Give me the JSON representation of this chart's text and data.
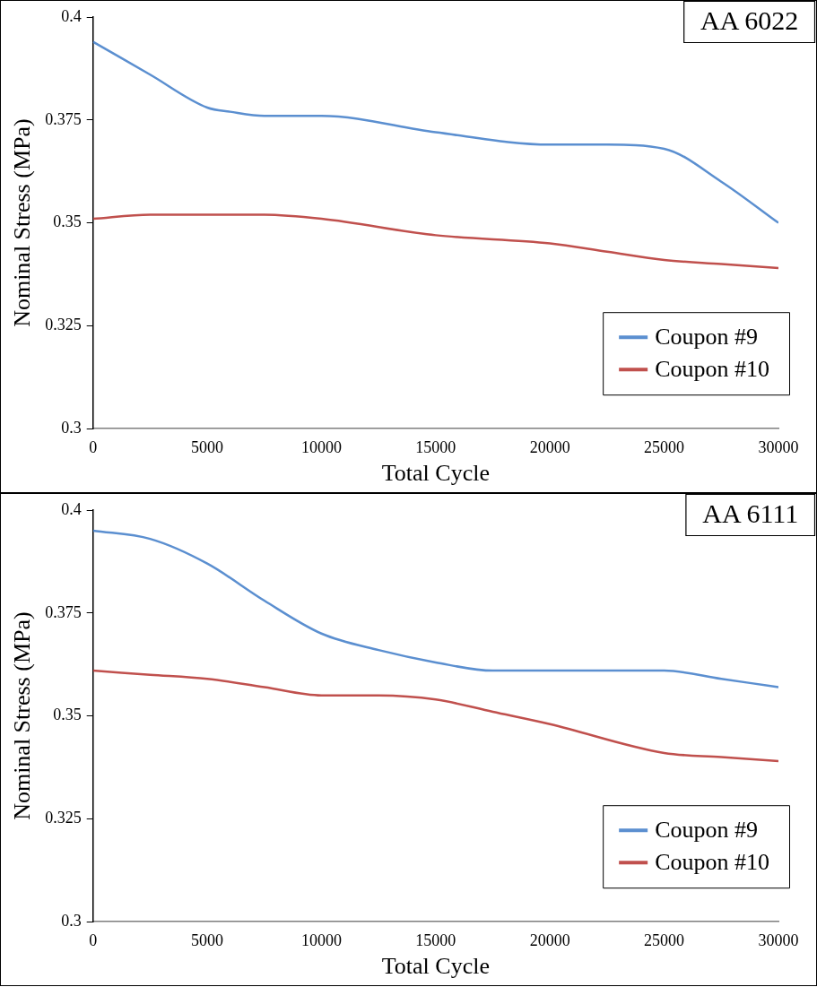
{
  "chart_data": [
    {
      "type": "line",
      "title": "AA 6022",
      "xlabel": "Total Cycle",
      "ylabel": "Nominal Stress (MPa)",
      "x": [
        0,
        2500,
        5000,
        6000,
        7500,
        10000,
        15000,
        20000,
        22500,
        25000,
        27500,
        30000
      ],
      "series": [
        {
          "name": "Coupon #9",
          "color": "#5b8fd0",
          "values": [
            0.394,
            0.386,
            0.378,
            0.377,
            0.376,
            0.376,
            0.372,
            0.369,
            0.369,
            0.368,
            0.36,
            0.35
          ]
        },
        {
          "name": "Coupon #10",
          "color": "#c0504d",
          "values": [
            0.351,
            0.352,
            0.352,
            0.352,
            0.352,
            0.351,
            0.347,
            0.345,
            0.343,
            0.341,
            0.34,
            0.339
          ]
        }
      ],
      "xlim": [
        0,
        30000
      ],
      "xticks": [
        0,
        5000,
        10000,
        15000,
        20000,
        25000,
        30000
      ],
      "ylim": [
        0.3,
        0.4
      ],
      "yticks": [
        0.3,
        0.325,
        0.35,
        0.375,
        0.4
      ],
      "legend": "bottom right"
    },
    {
      "type": "line",
      "title": "AA 6111",
      "xlabel": "Total Cycle",
      "ylabel": "Nominal Stress (MPa)",
      "x": [
        0,
        2500,
        5000,
        7500,
        10000,
        12500,
        15000,
        17500,
        20000,
        25000,
        27500,
        30000
      ],
      "series": [
        {
          "name": "Coupon #9",
          "color": "#5b8fd0",
          "values": [
            0.395,
            0.393,
            0.387,
            0.378,
            0.37,
            0.366,
            0.363,
            0.361,
            0.361,
            0.361,
            0.359,
            0.357
          ]
        },
        {
          "name": "Coupon #10",
          "color": "#c0504d",
          "values": [
            0.361,
            0.36,
            0.359,
            0.357,
            0.355,
            0.355,
            0.354,
            0.351,
            0.348,
            0.341,
            0.34,
            0.339
          ]
        }
      ],
      "xlim": [
        0,
        30000
      ],
      "xticks": [
        0,
        5000,
        10000,
        15000,
        20000,
        25000,
        30000
      ],
      "ylim": [
        0.3,
        0.4
      ],
      "yticks": [
        0.3,
        0.325,
        0.35,
        0.375,
        0.4
      ],
      "legend": "bottom right"
    }
  ]
}
